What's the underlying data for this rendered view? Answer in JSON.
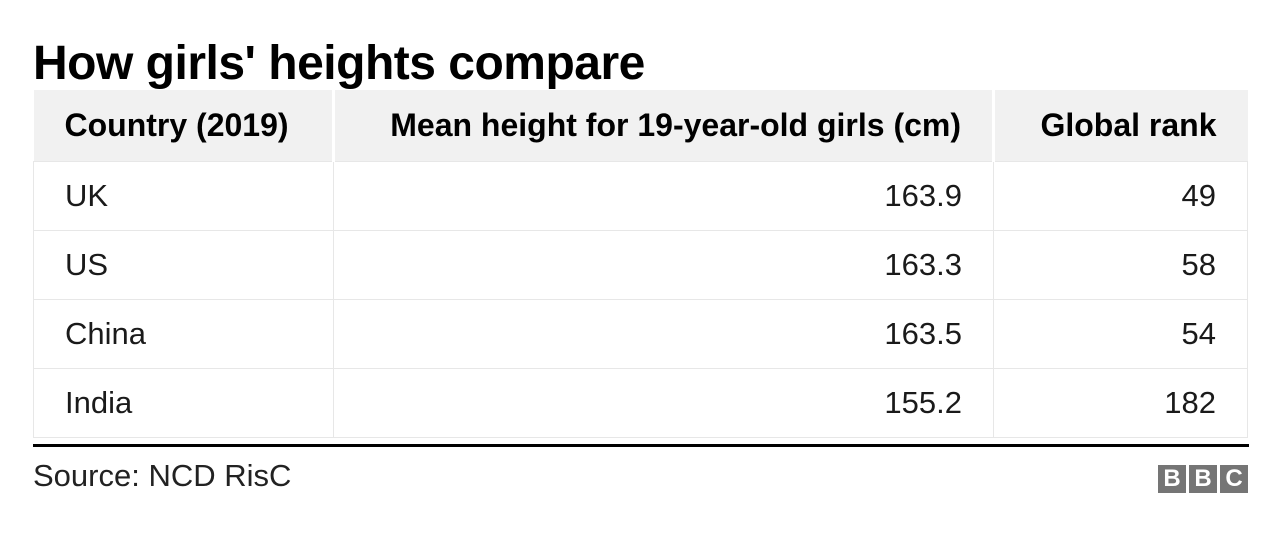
{
  "title": "How girls' heights compare",
  "chart_data": {
    "type": "table",
    "title": "How girls' heights compare",
    "columns": [
      "Country (2019)",
      "Mean height for 19-year-old girls (cm)",
      "Global rank"
    ],
    "rows": [
      {
        "country": "UK",
        "mean_height_cm": "163.9",
        "global_rank": "49"
      },
      {
        "country": "US",
        "mean_height_cm": "163.3",
        "global_rank": "58"
      },
      {
        "country": "China",
        "mean_height_cm": "163.5",
        "global_rank": "54"
      },
      {
        "country": "India",
        "mean_height_cm": "155.2",
        "global_rank": "182"
      }
    ],
    "source": "Source: NCD RisC",
    "layout_hints": {
      "numeric_columns_right_aligned": true,
      "header_background": "#f1f1f1",
      "grid": "light vertical and horizontal cell borders"
    }
  },
  "footer": {
    "source": "Source: NCD RisC",
    "logo": {
      "name": "BBC",
      "letters": [
        "B",
        "B",
        "C"
      ],
      "bg_color": "#757575"
    }
  },
  "colors": {
    "background": "#ffffff",
    "header_bg": "#f1f1f1",
    "cell_border": "#e7e7e7",
    "footer_rule": "#000000",
    "title_text": "#000000",
    "body_text": "#1a1a1a",
    "logo_gray": "#757575"
  }
}
